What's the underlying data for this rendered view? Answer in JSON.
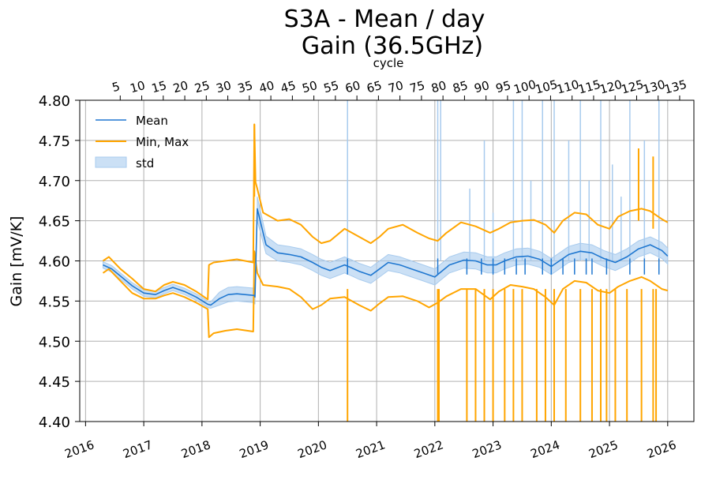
{
  "chart_data": {
    "type": "line",
    "title_line1": "S3A - Mean / day",
    "title_line2": "Gain (36.5GHz)",
    "ylabel": "Gain [mV/K]",
    "top_xlabel": "cycle",
    "ylim": [
      4.4,
      4.8
    ],
    "yticks": [
      "4.40",
      "4.45",
      "4.50",
      "4.55",
      "4.60",
      "4.65",
      "4.70",
      "4.75",
      "4.80"
    ],
    "xlim": [
      2015.9,
      2026.45
    ],
    "xticks": [
      "2016",
      "2017",
      "2018",
      "2019",
      "2020",
      "2021",
      "2022",
      "2023",
      "2024",
      "2025",
      "2026"
    ],
    "cycle_ticks": [
      "5",
      "10",
      "15",
      "20",
      "25",
      "30",
      "35",
      "40",
      "45",
      "50",
      "55",
      "60",
      "65",
      "70",
      "75",
      "80",
      "85",
      "90",
      "95",
      "100",
      "105",
      "110",
      "115",
      "120",
      "125",
      "130",
      "135"
    ],
    "grid": true,
    "legend_position": "top-left",
    "legend": [
      {
        "label": "Mean",
        "kind": "line",
        "color": "#1f77d0"
      },
      {
        "label": "Min, Max",
        "kind": "line",
        "color": "#ffa500"
      },
      {
        "label": "std",
        "kind": "band",
        "color": "#a8cbee"
      }
    ],
    "series": [
      {
        "name": "Mean",
        "color": "#1f77d0",
        "x": [
          2016.3,
          2016.45,
          2016.6,
          2016.8,
          2017.0,
          2017.2,
          2017.35,
          2017.5,
          2017.7,
          2017.9,
          2018.1,
          2018.15,
          2018.3,
          2018.45,
          2018.6,
          2018.9,
          2018.91,
          2018.95,
          2019.1,
          2019.3,
          2019.5,
          2019.7,
          2019.9,
          2020.05,
          2020.2,
          2020.45,
          2020.55,
          2020.7,
          2020.9,
          2021.05,
          2021.2,
          2021.4,
          2021.6,
          2021.8,
          2022.0,
          2022.1,
          2022.25,
          2022.5,
          2022.7,
          2022.9,
          2023.05,
          2023.2,
          2023.4,
          2023.6,
          2023.8,
          2024.0,
          2024.1,
          2024.3,
          2024.5,
          2024.7,
          2024.9,
          2025.1,
          2025.3,
          2025.5,
          2025.7,
          2025.9,
          2026.0
        ],
        "y": [
          4.595,
          4.59,
          4.581,
          4.569,
          4.56,
          4.558,
          4.563,
          4.567,
          4.562,
          4.555,
          4.546,
          4.545,
          4.553,
          4.558,
          4.559,
          4.557,
          4.555,
          4.665,
          4.62,
          4.61,
          4.608,
          4.605,
          4.598,
          4.592,
          4.588,
          4.595,
          4.592,
          4.587,
          4.582,
          4.59,
          4.598,
          4.595,
          4.59,
          4.585,
          4.58,
          4.586,
          4.595,
          4.601,
          4.6,
          4.595,
          4.595,
          4.6,
          4.605,
          4.606,
          4.602,
          4.593,
          4.598,
          4.608,
          4.612,
          4.61,
          4.603,
          4.598,
          4.605,
          4.615,
          4.62,
          4.613,
          4.606
        ],
        "std": [
          0.004,
          0.004,
          0.004,
          0.004,
          0.004,
          0.004,
          0.004,
          0.004,
          0.004,
          0.004,
          0.004,
          0.004,
          0.008,
          0.009,
          0.009,
          0.009,
          0.009,
          0.015,
          0.011,
          0.01,
          0.01,
          0.01,
          0.01,
          0.01,
          0.01,
          0.01,
          0.01,
          0.01,
          0.01,
          0.01,
          0.01,
          0.01,
          0.01,
          0.01,
          0.01,
          0.01,
          0.01,
          0.01,
          0.01,
          0.01,
          0.01,
          0.01,
          0.01,
          0.01,
          0.01,
          0.01,
          0.01,
          0.01,
          0.01,
          0.01,
          0.01,
          0.01,
          0.01,
          0.01,
          0.01,
          0.01,
          0.01
        ]
      },
      {
        "name": "Max",
        "color": "#ffa500",
        "x": [
          2016.3,
          2016.4,
          2016.6,
          2016.8,
          2017.0,
          2017.2,
          2017.35,
          2017.5,
          2017.7,
          2017.9,
          2018.1,
          2018.12,
          2018.2,
          2018.4,
          2018.6,
          2018.88,
          2018.9,
          2018.92,
          2018.95,
          2019.05,
          2019.3,
          2019.5,
          2019.7,
          2019.9,
          2020.05,
          2020.2,
          2020.45,
          2020.7,
          2020.9,
          2021.05,
          2021.2,
          2021.45,
          2021.7,
          2021.9,
          2022.05,
          2022.2,
          2022.45,
          2022.7,
          2022.95,
          2023.1,
          2023.3,
          2023.5,
          2023.7,
          2023.9,
          2024.05,
          2024.2,
          2024.4,
          2024.6,
          2024.8,
          2025.0,
          2025.15,
          2025.35,
          2025.55,
          2025.7,
          2025.9,
          2026.0
        ],
        "y": [
          4.6,
          4.605,
          4.59,
          4.578,
          4.565,
          4.562,
          4.57,
          4.574,
          4.57,
          4.562,
          4.552,
          4.595,
          4.598,
          4.6,
          4.602,
          4.598,
          4.77,
          4.698,
          4.69,
          4.66,
          4.65,
          4.652,
          4.645,
          4.63,
          4.622,
          4.625,
          4.64,
          4.63,
          4.622,
          4.63,
          4.64,
          4.645,
          4.635,
          4.628,
          4.625,
          4.635,
          4.648,
          4.643,
          4.635,
          4.64,
          4.648,
          4.65,
          4.651,
          4.645,
          4.635,
          4.65,
          4.66,
          4.658,
          4.645,
          4.64,
          4.655,
          4.662,
          4.665,
          4.662,
          4.652,
          4.648
        ]
      },
      {
        "name": "Min",
        "color": "#ffa500",
        "x": [
          2016.3,
          2016.4,
          2016.6,
          2016.8,
          2017.0,
          2017.2,
          2017.35,
          2017.5,
          2017.7,
          2017.9,
          2018.1,
          2018.12,
          2018.2,
          2018.4,
          2018.6,
          2018.88,
          2018.9,
          2018.95,
          2019.05,
          2019.3,
          2019.5,
          2019.7,
          2019.9,
          2020.05,
          2020.2,
          2020.45,
          2020.7,
          2020.9,
          2021.05,
          2021.2,
          2021.45,
          2021.7,
          2021.9,
          2022.05,
          2022.2,
          2022.45,
          2022.7,
          2022.95,
          2023.1,
          2023.3,
          2023.5,
          2023.7,
          2023.9,
          2024.05,
          2024.2,
          2024.4,
          2024.6,
          2024.8,
          2025.0,
          2025.15,
          2025.35,
          2025.55,
          2025.7,
          2025.9,
          2026.0
        ],
        "y": [
          4.585,
          4.59,
          4.575,
          4.56,
          4.553,
          4.553,
          4.557,
          4.56,
          4.555,
          4.548,
          4.54,
          4.505,
          4.51,
          4.513,
          4.515,
          4.512,
          4.612,
          4.585,
          4.57,
          4.568,
          4.565,
          4.555,
          4.54,
          4.545,
          4.553,
          4.555,
          4.545,
          4.538,
          4.547,
          4.555,
          4.556,
          4.55,
          4.542,
          4.548,
          4.556,
          4.565,
          4.565,
          4.552,
          4.562,
          4.57,
          4.568,
          4.565,
          4.555,
          4.545,
          4.565,
          4.575,
          4.573,
          4.563,
          4.56,
          4.568,
          4.575,
          4.58,
          4.575,
          4.565,
          4.563
        ]
      }
    ],
    "mean_dips": [
      2020.5,
      2022.05,
      2022.55,
      2022.8,
      2023.0,
      2023.2,
      2023.4,
      2023.55,
      2023.85,
      2024.0,
      2024.2,
      2024.4,
      2024.6,
      2024.7,
      2024.95,
      2025.35,
      2025.6,
      2025.85
    ],
    "min_dropouts": [
      2020.5,
      2022.05,
      2022.07,
      2022.55,
      2022.7,
      2022.85,
      2023.0,
      2023.2,
      2023.35,
      2023.5,
      2023.75,
      2023.9,
      2024.05,
      2024.25,
      2024.5,
      2024.7,
      2024.85,
      2024.95,
      2025.1,
      2025.3,
      2025.55,
      2025.75,
      2025.8
    ],
    "std_spikes": [
      {
        "x": 2020.5,
        "top": 4.8
      },
      {
        "x": 2022.05,
        "top": 4.8
      },
      {
        "x": 2022.1,
        "top": 4.8
      },
      {
        "x": 2022.6,
        "top": 4.69
      },
      {
        "x": 2022.85,
        "top": 4.75
      },
      {
        "x": 2023.0,
        "top": 4.66
      },
      {
        "x": 2023.35,
        "top": 4.8
      },
      {
        "x": 2023.5,
        "top": 4.8
      },
      {
        "x": 2023.65,
        "top": 4.7
      },
      {
        "x": 2023.85,
        "top": 4.8
      },
      {
        "x": 2024.05,
        "top": 4.8
      },
      {
        "x": 2024.3,
        "top": 4.75
      },
      {
        "x": 2024.5,
        "top": 4.8
      },
      {
        "x": 2024.65,
        "top": 4.7
      },
      {
        "x": 2024.85,
        "top": 4.8
      },
      {
        "x": 2025.05,
        "top": 4.72
      },
      {
        "x": 2025.2,
        "top": 4.68
      },
      {
        "x": 2025.35,
        "top": 4.8
      },
      {
        "x": 2025.6,
        "top": 4.75
      },
      {
        "x": 2025.85,
        "top": 4.8
      }
    ],
    "max_spikes": [
      {
        "x": 2018.9,
        "y": 4.77
      },
      {
        "x": 2025.5,
        "y": 4.74
      },
      {
        "x": 2025.75,
        "y": 4.73
      }
    ]
  }
}
